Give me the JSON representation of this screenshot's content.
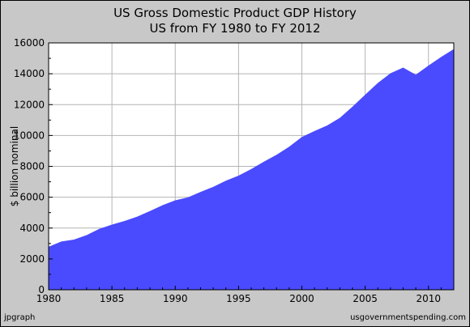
{
  "chart_data": {
    "type": "area",
    "title": "US Gross Domestic Product GDP History",
    "subtitle": "US from FY 1980 to FY 2012",
    "xlabel": "",
    "ylabel": "$ billion nominal",
    "xlim": [
      1980,
      2012
    ],
    "ylim": [
      0,
      16000
    ],
    "x_ticks": [
      1980,
      1985,
      1990,
      1995,
      2000,
      2005,
      2010
    ],
    "y_ticks": [
      0,
      2000,
      4000,
      6000,
      8000,
      10000,
      12000,
      14000,
      16000
    ],
    "grid": true,
    "legend": "none",
    "series": [
      {
        "color": "#4a4aff",
        "x": [
          1980,
          1981,
          1982,
          1983,
          1984,
          1985,
          1986,
          1987,
          1988,
          1989,
          1990,
          1991,
          1992,
          1993,
          1994,
          1995,
          1996,
          1997,
          1998,
          1999,
          2000,
          2001,
          2002,
          2003,
          2004,
          2005,
          2006,
          2007,
          2008,
          2009,
          2010,
          2011,
          2012
        ],
        "values": [
          2790,
          3130,
          3250,
          3540,
          3950,
          4220,
          4460,
          4740,
          5100,
          5480,
          5800,
          5990,
          6340,
          6670,
          7070,
          7400,
          7820,
          8300,
          8750,
          9270,
          9900,
          10290,
          10650,
          11140,
          11870,
          12640,
          13400,
          14030,
          14400,
          13940,
          14530,
          15090,
          15600
        ]
      }
    ]
  },
  "footer": {
    "left": "jpgraph",
    "right": "usgovernmentspending.com"
  },
  "colors": {
    "frame_background": "#c8c8c8",
    "plot_background": "#ffffff",
    "area_fill": "#4a4aff",
    "gridline": "#b4b4b4"
  }
}
